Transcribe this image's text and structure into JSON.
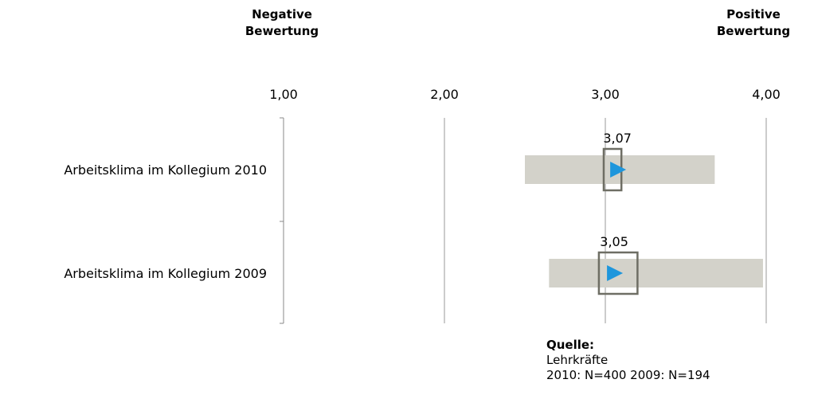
{
  "header": {
    "negative_line1": "Negative",
    "negative_line2": "Bewertung",
    "positive_line1": "Positive",
    "positive_line2": "Bewertung"
  },
  "chart_data": {
    "type": "bar",
    "orientation": "horizontal",
    "xlim": [
      1.0,
      4.0
    ],
    "xticks": [
      "1,00",
      "2,00",
      "3,00",
      "4,00"
    ],
    "xtick_values": [
      1.0,
      2.0,
      3.0,
      4.0
    ],
    "grid": true,
    "categories": [
      "Arbeitsklima im Kollegium 2010",
      "Arbeitsklima im Kollegium 2009"
    ],
    "series": [
      {
        "range_low": [
          2.5,
          2.65
        ],
        "range_high": [
          3.68,
          3.98
        ],
        "mean": [
          3.07,
          3.05
        ],
        "mean_labels": [
          "3,07",
          "3,05"
        ],
        "ci_low": [
          2.99,
          2.96
        ],
        "ci_high": [
          3.1,
          3.2
        ]
      }
    ],
    "colors": {
      "range_bar": "#d3d2ca",
      "marker": "#1e96dc",
      "ci_box": "#6e6e64",
      "axis": "#888888"
    }
  },
  "source": {
    "label": "Quelle:",
    "line1": "Lehrkräfte",
    "line2": "2010: N=400 2009: N=194"
  }
}
